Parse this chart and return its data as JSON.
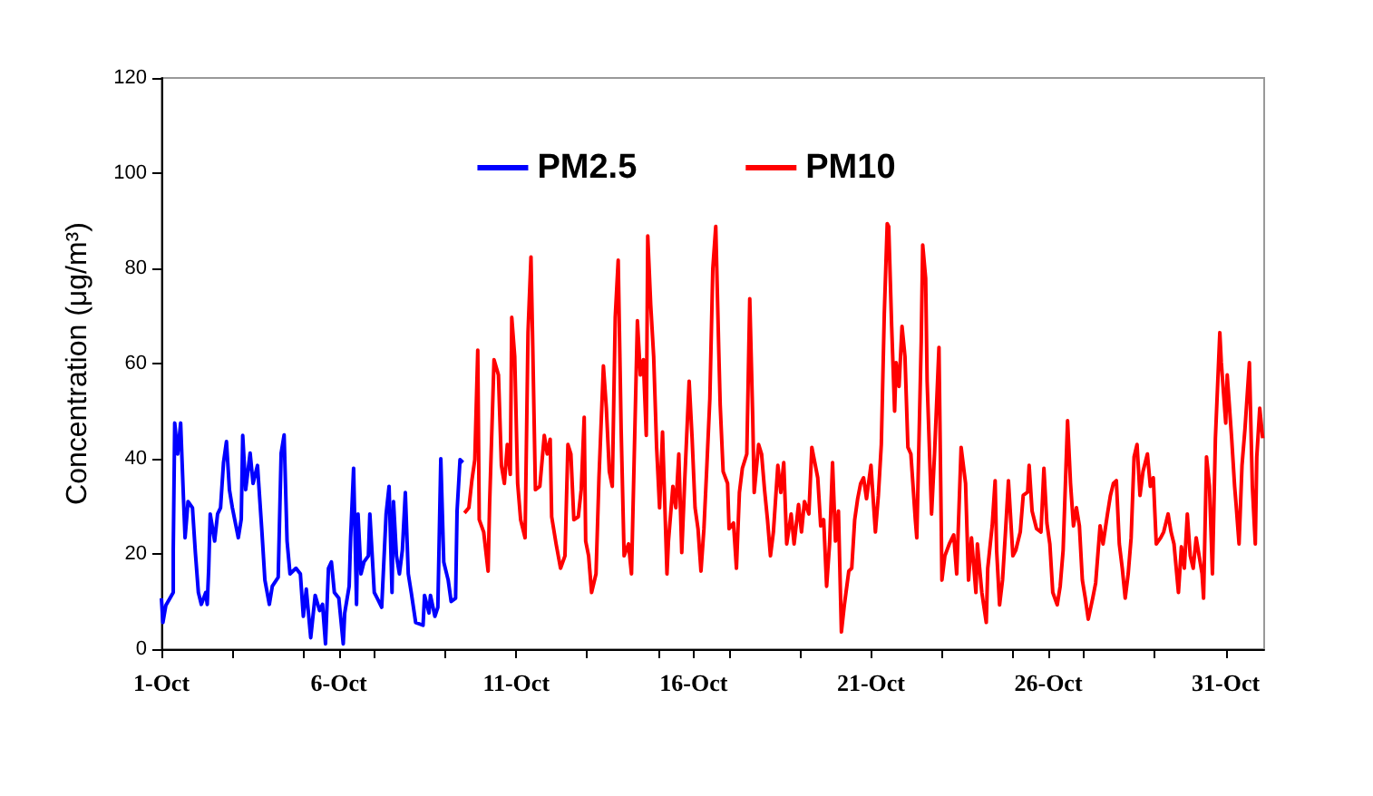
{
  "chart_data": {
    "type": "line",
    "ylabel": "Concentration (μg/m³)",
    "xlim": [
      "--10-01T00:00",
      "--11-01T02:00"
    ],
    "ylim": [
      0,
      120
    ],
    "yticks": [
      0,
      20,
      40,
      60,
      80,
      100,
      120
    ],
    "xticks": [
      {
        "value": "--10-01",
        "label": "1-Oct"
      },
      {
        "value": "--10-03",
        "label": null
      },
      {
        "value": "--10-05",
        "label": null
      },
      {
        "value": "--10-06",
        "label": "6-Oct"
      },
      {
        "value": "--10-07",
        "label": null
      },
      {
        "value": "--10-09",
        "label": null
      },
      {
        "value": "--10-11",
        "label": "11-Oct"
      },
      {
        "value": "--10-13",
        "label": null
      },
      {
        "value": "--10-15",
        "label": null
      },
      {
        "value": "--10-16",
        "label": "16-Oct"
      },
      {
        "value": "--10-17",
        "label": null
      },
      {
        "value": "--10-19",
        "label": null
      },
      {
        "value": "--10-21",
        "label": "21-Oct"
      },
      {
        "value": "--10-23",
        "label": null
      },
      {
        "value": "--10-25",
        "label": null
      },
      {
        "value": "--10-26",
        "label": "26-Oct"
      },
      {
        "value": "--10-27",
        "label": null
      },
      {
        "value": "--10-29",
        "label": null
      },
      {
        "value": "--10-31",
        "label": "31-Oct"
      }
    ],
    "grid": false,
    "legend": "top",
    "marker": "none",
    "line_style": "solid",
    "series": [
      {
        "name": "PM2.5",
        "color": "#0000ff",
        "x": [
          "--10-01T00:00",
          "--10-01T01:00",
          "--10-01T03:00",
          "--10-01T08:00",
          "--10-01T08:00",
          "--10-01T09:00",
          "--10-01T11:00",
          "--10-01T13:00",
          "--10-01T15:00",
          "--10-01T16:00",
          "--10-01T18:00",
          "--10-01T21:00",
          "--10-01T23:00",
          "--10-02T01:00",
          "--10-02T03:00",
          "--10-02T06:00",
          "--10-02T07:00",
          "--10-02T08:00",
          "--10-02T09:00",
          "--10-02T12:00",
          "--10-02T14:00",
          "--10-02T16:00",
          "--10-02T18:00",
          "--10-02T20:00",
          "--10-02T22:00",
          "--10-03T00:00",
          "--10-03T04:00",
          "--10-03T06:00",
          "--10-03T07:00",
          "--10-03T09:00",
          "--10-03T12:00",
          "--10-03T14:00",
          "--10-03T17:00",
          "--10-03T20:00",
          "--10-03T22:00",
          "--10-04T01:00",
          "--10-04T03:00",
          "--10-04T07:00",
          "--10-04T09:00",
          "--10-04T11:00",
          "--10-04T13:00",
          "--10-04T15:00",
          "--10-04T19:00",
          "--10-04T22:00",
          "--10-05T00:00",
          "--10-05T02:00",
          "--10-05T05:00",
          "--10-05T08:00",
          "--10-05T11:00",
          "--10-05T13:00",
          "--10-05T15:00",
          "--10-05T17:00",
          "--10-05T19:00",
          "--10-05T21:00",
          "--10-06T00:00",
          "--10-06T03:00",
          "--10-06T04:00",
          "--10-06T07:00",
          "--10-06T08:00",
          "--10-06T10:00",
          "--10-06T12:00",
          "--10-06T13:00",
          "--10-06T15:00",
          "--10-06T17:00",
          "--10-06T20:00",
          "--10-06T21:00",
          "--10-07T00:00",
          "--10-07T02:00",
          "--10-07T05:00",
          "--10-07T08:00",
          "--10-07T10:00",
          "--10-07T12:00",
          "--10-07T13:00",
          "--10-07T15:00",
          "--10-07T17:00",
          "--10-07T19:00",
          "--10-07T21:00",
          "--10-07T23:00",
          "--10-08T01:00",
          "--10-08T04:00",
          "--10-08T09:00",
          "--10-08T10:00",
          "--10-08T13:00",
          "--10-08T14:00",
          "--10-08T17:00",
          "--10-08T19:00",
          "--10-08T21:00",
          "--10-08T23:00",
          "--10-09T02:00",
          "--10-09T04:00",
          "--10-09T07:00",
          "--10-09T08:00",
          "--10-09T10:00",
          "--10-09T12:00"
        ],
        "values": [
          10.7,
          5.6,
          9.2,
          11.9,
          20.8,
          47.5,
          41,
          47.5,
          31,
          23.4,
          31,
          29.7,
          20.1,
          11.9,
          9.4,
          11.9,
          9.4,
          17,
          28.4,
          22.7,
          28.4,
          29.7,
          39.2,
          43.6,
          33.5,
          29.7,
          23.4,
          27.3,
          44.9,
          33.5,
          41.2,
          34.8,
          38.6,
          24.6,
          14.5,
          9.4,
          13.2,
          15.1,
          41.2,
          45,
          22.7,
          15.8,
          17,
          15.8,
          6.9,
          12.6,
          2.4,
          11.3,
          8.1,
          9.4,
          1.1,
          17,
          18.3,
          11.9,
          10.7,
          1.1,
          7.6,
          13.2,
          23.4,
          38,
          9.4,
          28.4,
          15.8,
          18.3,
          19.6,
          28.4,
          11.9,
          10.7,
          8.8,
          28.4,
          34.2,
          11.9,
          31,
          19.6,
          15.8,
          20.8,
          32.9,
          15.8,
          11.9,
          5.6,
          5,
          11.3,
          7.6,
          11.3,
          6.9,
          8.8,
          40,
          18.3,
          14.5,
          10,
          10.7,
          29,
          39.8,
          39.2
        ]
      },
      {
        "name": "PM10",
        "color": "#ff0000",
        "x": [
          "--10-09T13:00",
          "--10-09T16:00",
          "--10-09T18:00",
          "--10-09T20:00",
          "--10-09T22:00",
          "--10-09T23:00",
          "--10-10T02:00",
          "--10-10T05:00",
          "--10-10T06:00",
          "--10-10T09:00",
          "--10-10T12:00",
          "--10-10T14:00",
          "--10-10T16:00",
          "--10-10T18:00",
          "--10-10T20:00",
          "--10-10T21:00",
          "--10-10T23:00",
          "--10-11T01:00",
          "--10-11T03:00",
          "--10-11T06:00",
          "--10-11T08:00",
          "--10-11T10:00",
          "--10-11T11:00",
          "--10-11T13:00",
          "--10-11T16:00",
          "--10-11T19:00",
          "--10-11T21:00",
          "--10-11T23:00",
          "--10-12T00:00",
          "--10-12T03:00",
          "--10-12T06:00",
          "--10-12T09:00",
          "--10-12T11:00",
          "--10-12T13:00",
          "--10-12T15:00",
          "--10-12T18:00",
          "--10-12T20:00",
          "--10-12T22:00",
          "--10-12T23:00",
          "--10-13T01:00",
          "--10-13T03:00",
          "--10-13T06:00",
          "--10-13T08:00",
          "--10-13T11:00",
          "--10-13T13:00",
          "--10-13T15:00",
          "--10-13T17:00",
          "--10-13T19:00",
          "--10-13T21:00",
          "--10-13T23:00",
          "--10-14T01:00",
          "--10-14T04:00",
          "--10-14T06:00",
          "--10-14T08:00",
          "--10-14T10:00",
          "--10-14T12:00",
          "--10-14T14:00",
          "--10-14T16:00",
          "--10-14T17:00",
          "--10-14T19:00",
          "--10-14T21:00",
          "--10-14T23:00",
          "--10-15T01:00",
          "--10-15T03:00",
          "--10-15T06:00",
          "--10-15T07:00",
          "--10-15T10:00",
          "--10-15T12:00",
          "--10-15T14:00",
          "--10-15T16:00",
          "--10-15T18:00",
          "--10-15T21:00",
          "--10-15T23:00",
          "--10-16T01:00",
          "--10-16T03:00",
          "--10-16T05:00",
          "--10-16T07:00",
          "--10-16T09:00",
          "--10-16T11:00",
          "--10-16T13:00",
          "--10-16T15:00",
          "--10-16T17:00",
          "--10-16T18:00",
          "--10-16T20:00",
          "--10-16T23:00",
          "--10-17T00:00",
          "--10-17T03:00",
          "--10-17T05:00",
          "--10-17T07:00",
          "--10-17T09:00",
          "--10-17T12:00",
          "--10-17T14:00",
          "--10-17T16:00",
          "--10-17T17:00",
          "--10-17T20:00",
          "--10-17T22:00",
          "--10-18T00:00",
          "--10-18T02:00",
          "--10-18T04:00",
          "--10-18T06:00",
          "--10-18T09:00",
          "--10-18T11:00",
          "--10-18T13:00",
          "--10-18T15:00",
          "--10-18T18:00",
          "--10-18T20:00",
          "--10-18T23:00",
          "--10-19T01:00",
          "--10-19T03:00",
          "--10-19T06:00",
          "--10-19T08:00",
          "--10-19T10:00",
          "--10-19T12:00",
          "--10-19T14:00",
          "--10-19T16:00",
          "--10-19T18:00",
          "--10-19T20:00",
          "--10-19T22:00",
          "--10-20T00:00",
          "--10-20T02:00",
          "--10-20T04:00",
          "--10-20T06:00",
          "--10-20T09:00",
          "--10-20T11:00",
          "--10-20T13:00",
          "--10-20T15:00",
          "--10-20T17:00",
          "--10-20T19:00",
          "--10-20T21:00",
          "--10-21T00:00",
          "--10-21T03:00",
          "--10-21T05:00",
          "--10-21T07:00",
          "--10-21T09:00",
          "--10-21T11:00",
          "--10-21T12:00",
          "--10-21T14:00",
          "--10-21T16:00",
          "--10-21T17:00",
          "--10-21T19:00",
          "--10-21T21:00",
          "--10-21T23:00",
          "--10-22T01:00",
          "--10-22T03:00",
          "--10-22T06:00",
          "--10-22T07:00",
          "--10-22T10:00",
          "--10-22T11:00",
          "--10-22T13:00",
          "--10-22T14:00",
          "--10-22T17:00",
          "--10-22T19:00",
          "--10-22T22:00",
          "--10-23T00:00",
          "--10-23T02:00",
          "--10-23T05:00",
          "--10-23T08:00",
          "--10-23T10:00",
          "--10-23T13:00",
          "--10-23T16:00",
          "--10-23T18:00",
          "--10-23T20:00",
          "--10-23T23:00",
          "--10-24T00:00",
          "--10-24T03:00",
          "--10-24T06:00",
          "--10-24T07:00",
          "--10-24T10:00",
          "--10-24T12:00",
          "--10-24T13:00",
          "--10-24T15:00",
          "--10-24T17:00",
          "--10-24T19:00",
          "--10-24T21:00",
          "--10-25T00:00",
          "--10-25T02:00",
          "--10-25T05:00",
          "--10-25T07:00",
          "--10-25T10:00",
          "--10-25T11:00",
          "--10-25T13:00",
          "--10-25T16:00",
          "--10-25T19:00",
          "--10-25T21:00",
          "--10-25T23:00",
          "--10-26T01:00",
          "--10-26T03:00",
          "--10-26T06:00",
          "--10-26T08:00",
          "--10-26T10:00",
          "--10-26T13:00",
          "--10-26T15:00",
          "--10-26T17:00",
          "--10-26T19:00",
          "--10-26T21:00",
          "--10-26T23:00",
          "--10-27T01:00",
          "--10-27T03:00",
          "--10-27T06:00",
          "--10-27T08:00",
          "--10-27T11:00",
          "--10-27T13:00",
          "--10-27T16:00",
          "--10-27T18:00",
          "--10-27T20:00",
          "--10-27T22:00",
          "--10-28T00:00",
          "--10-28T02:00",
          "--10-28T04:00",
          "--10-28T06:00",
          "--10-28T08:00",
          "--10-28T10:00",
          "--10-28T12:00",
          "--10-28T14:00",
          "--10-28T16:00",
          "--10-28T19:00",
          "--10-28T21:00",
          "--10-28T23:00",
          "--10-29T01:00",
          "--10-29T04:00",
          "--10-29T06:00",
          "--10-29T09:00",
          "--10-29T11:00",
          "--10-29T13:00",
          "--10-29T16:00",
          "--10-29T18:00",
          "--10-29T20:00",
          "--10-29T22:00",
          "--10-30T00:00",
          "--10-30T02:00",
          "--10-30T04:00",
          "--10-30T06:00",
          "--10-30T08:00",
          "--10-30T09:00",
          "--10-30T11:00",
          "--10-30T13:00",
          "--10-30T15:00",
          "--10-30T17:00",
          "--10-30T20:00",
          "--10-30T21:00",
          "--10-31T00:00",
          "--10-31T01:00",
          "--10-31T04:00",
          "--10-31T06:00",
          "--10-31T07:00",
          "--10-31T09:00",
          "--10-31T11:00",
          "--10-31T13:00",
          "--10-31T16:00",
          "--10-31T18:00",
          "--10-31T20:00",
          "--10-31T21:00",
          "--10-31T23:00",
          "--11-01T01:00"
        ],
        "values": [
          28.6,
          29.7,
          35.4,
          39.8,
          62.8,
          27.2,
          24.6,
          16.4,
          30.4,
          60.8,
          57.6,
          38.6,
          34.8,
          43,
          36.7,
          69.7,
          61.5,
          34.8,
          27.2,
          23.4,
          66.5,
          82.4,
          66.9,
          33.5,
          34.2,
          44.9,
          41,
          44.1,
          27.8,
          22.1,
          17,
          19.6,
          43,
          41,
          27.2,
          27.8,
          33.5,
          48.7,
          22.7,
          19.6,
          11.9,
          15.8,
          36,
          59.5,
          50.6,
          37.3,
          34.2,
          69.7,
          81.7,
          46.2,
          19.6,
          22.1,
          15.8,
          42.4,
          69,
          57.6,
          60.8,
          44.9,
          86.8,
          72.3,
          61.5,
          42.4,
          29.7,
          45.6,
          15.8,
          22.7,
          34.2,
          29.7,
          41,
          20.3,
          35.4,
          56.3,
          44.3,
          29.7,
          25.3,
          16.4,
          25.3,
          38.6,
          52.6,
          79.9,
          88.8,
          63.2,
          51.3,
          37.3,
          34.8,
          25.3,
          26.5,
          17,
          32.9,
          38,
          41,
          73.6,
          48.8,
          32.9,
          43,
          41,
          33.5,
          27.2,
          19.6,
          24.6,
          38.6,
          32.9,
          39.2,
          22.1,
          28.4,
          22.1,
          30.4,
          24.6,
          31,
          28.4,
          42.4,
          39.2,
          36,
          25.9,
          27.2,
          13.2,
          22.1,
          39.2,
          22.7,
          29,
          3.6,
          9.3,
          16.4,
          17,
          27.2,
          31.6,
          34.8,
          36,
          31.6,
          38.6,
          24.6,
          32.3,
          43,
          70.3,
          89.4,
          88.8,
          67.8,
          50,
          60.2,
          55.2,
          67.8,
          61.5,
          42.4,
          41,
          27.2,
          23.4,
          64.6,
          84.9,
          77.9,
          56.3,
          28.4,
          41,
          63.4,
          14.5,
          19.6,
          22.1,
          24,
          15.8,
          42.4,
          34.8,
          14.5,
          23.4,
          11.9,
          22.1,
          11.9,
          5.6,
          17,
          25.9,
          35.4,
          20.8,
          9.3,
          14.5,
          24.6,
          35.4,
          19.6,
          20.8,
          24.6,
          32.3,
          33,
          38.6,
          29,
          25.3,
          24.6,
          38,
          26.5,
          22.1,
          11.9,
          9.3,
          13.2,
          20.8,
          48,
          34.8,
          25.9,
          29.7,
          25.9,
          14.5,
          10.7,
          6.3,
          10.7,
          13.9,
          25.9,
          22.1,
          28.4,
          32.3,
          34.8,
          35.4,
          22.1,
          17,
          10.7,
          15.8,
          23.4,
          40.4,
          43,
          32.3,
          37.3,
          41,
          34.2,
          36,
          22.1,
          23.4,
          24.6,
          28.4,
          24.6,
          22.1,
          11.9,
          21.5,
          17,
          28.4,
          19.6,
          17,
          23.4,
          19.6,
          15.8,
          10.7,
          40.4,
          34.2,
          15.8,
          44.3,
          66.5,
          60.2,
          47.5,
          57.6,
          44.3,
          34.2,
          30.4,
          22.1,
          38.6,
          46.2,
          60.2,
          34.2,
          22.1,
          40.4,
          50.6,
          44.3
        ]
      }
    ]
  }
}
